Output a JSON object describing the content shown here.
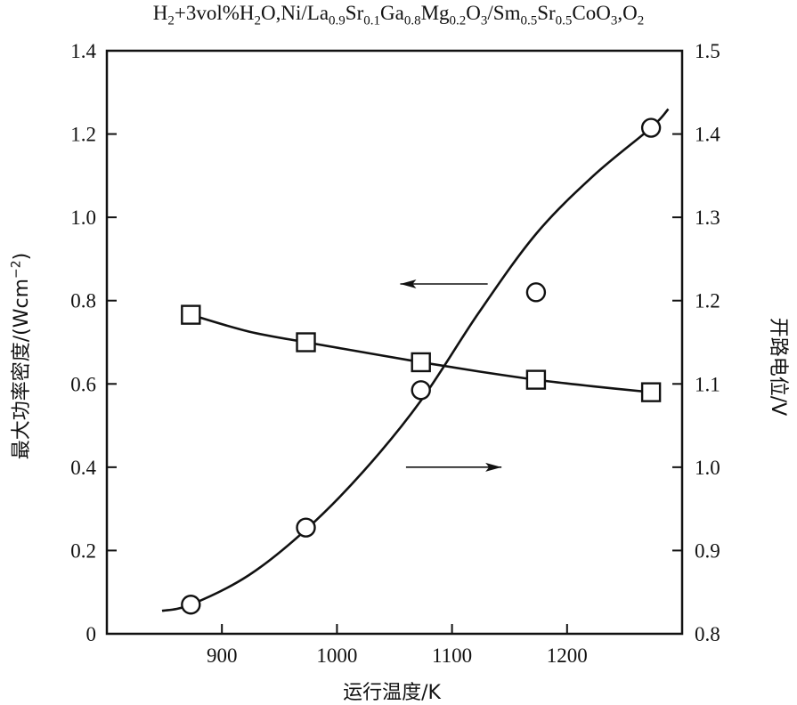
{
  "chart_data": {
    "type": "line",
    "title_parts": [
      {
        "t": "H",
        "s": ""
      },
      {
        "t": "2",
        "s": "sub"
      },
      {
        "t": "+3vol%H",
        "s": ""
      },
      {
        "t": "2",
        "s": "sub"
      },
      {
        "t": "O,Ni/La",
        "s": ""
      },
      {
        "t": "0.9",
        "s": "sub"
      },
      {
        "t": "Sr",
        "s": ""
      },
      {
        "t": "0.1",
        "s": "sub"
      },
      {
        "t": "Ga",
        "s": ""
      },
      {
        "t": "0.8",
        "s": "sub"
      },
      {
        "t": "Mg",
        "s": ""
      },
      {
        "t": "0.2",
        "s": "sub"
      },
      {
        "t": "O",
        "s": ""
      },
      {
        "t": "3",
        "s": "sub"
      },
      {
        "t": "/Sm",
        "s": ""
      },
      {
        "t": "0.5",
        "s": "sub"
      },
      {
        "t": "Sr",
        "s": ""
      },
      {
        "t": "0.5",
        "s": "sub"
      },
      {
        "t": "CoO",
        "s": ""
      },
      {
        "t": "3",
        "s": "sub"
      },
      {
        "t": ",O",
        "s": ""
      },
      {
        "t": "2",
        "s": "sub"
      }
    ],
    "xlabel": "运行温度/K",
    "ylabel_left_parts": [
      {
        "t": "最大功率密度/(Wcm",
        "s": ""
      },
      {
        "t": "−2",
        "s": "sup"
      },
      {
        "t": ")",
        "s": ""
      }
    ],
    "ylabel_right": "开路电位/V",
    "xlim": [
      800,
      1300
    ],
    "ylim_left": [
      0,
      1.4
    ],
    "ylim_right": [
      0.8,
      1.5
    ],
    "x_ticks": [
      900,
      1000,
      1100,
      1200
    ],
    "y_ticks_left": [
      "0",
      "0.2",
      "0.4",
      "0.6",
      "0.8",
      "1.0",
      "1.2",
      "1.4"
    ],
    "y_ticks_right": [
      "0.8",
      "0.9",
      "1.0",
      "1.1",
      "1.2",
      "1.3",
      "1.4",
      "1.5"
    ],
    "series": [
      {
        "axis": "left",
        "marker": "circle",
        "x": [
          873,
          973,
          1073,
          1173,
          1273
        ],
        "y": [
          0.07,
          0.255,
          0.585,
          0.82,
          1.215
        ],
        "curve_x": [
          848,
          873,
          923,
          973,
          1023,
          1073,
          1123,
          1173,
          1223,
          1273,
          1288
        ],
        "curve_y": [
          0.055,
          0.07,
          0.14,
          0.25,
          0.39,
          0.56,
          0.77,
          0.96,
          1.1,
          1.215,
          1.26
        ]
      },
      {
        "axis": "right",
        "marker": "square",
        "x": [
          873,
          973,
          1073,
          1173,
          1273
        ],
        "y": [
          1.183,
          1.15,
          1.126,
          1.105,
          1.09
        ],
        "curve_x": [
          873,
          923,
          973,
          1023,
          1073,
          1123,
          1173,
          1223,
          1273
        ],
        "curve_y": [
          1.183,
          1.163,
          1.15,
          1.138,
          1.126,
          1.115,
          1.105,
          1.097,
          1.09
        ]
      }
    ],
    "annotations": [
      {
        "type": "arrow",
        "direction": "left",
        "refers_to": "left axis"
      },
      {
        "type": "arrow",
        "direction": "right",
        "refers_to": "right axis"
      }
    ],
    "grid": false
  }
}
